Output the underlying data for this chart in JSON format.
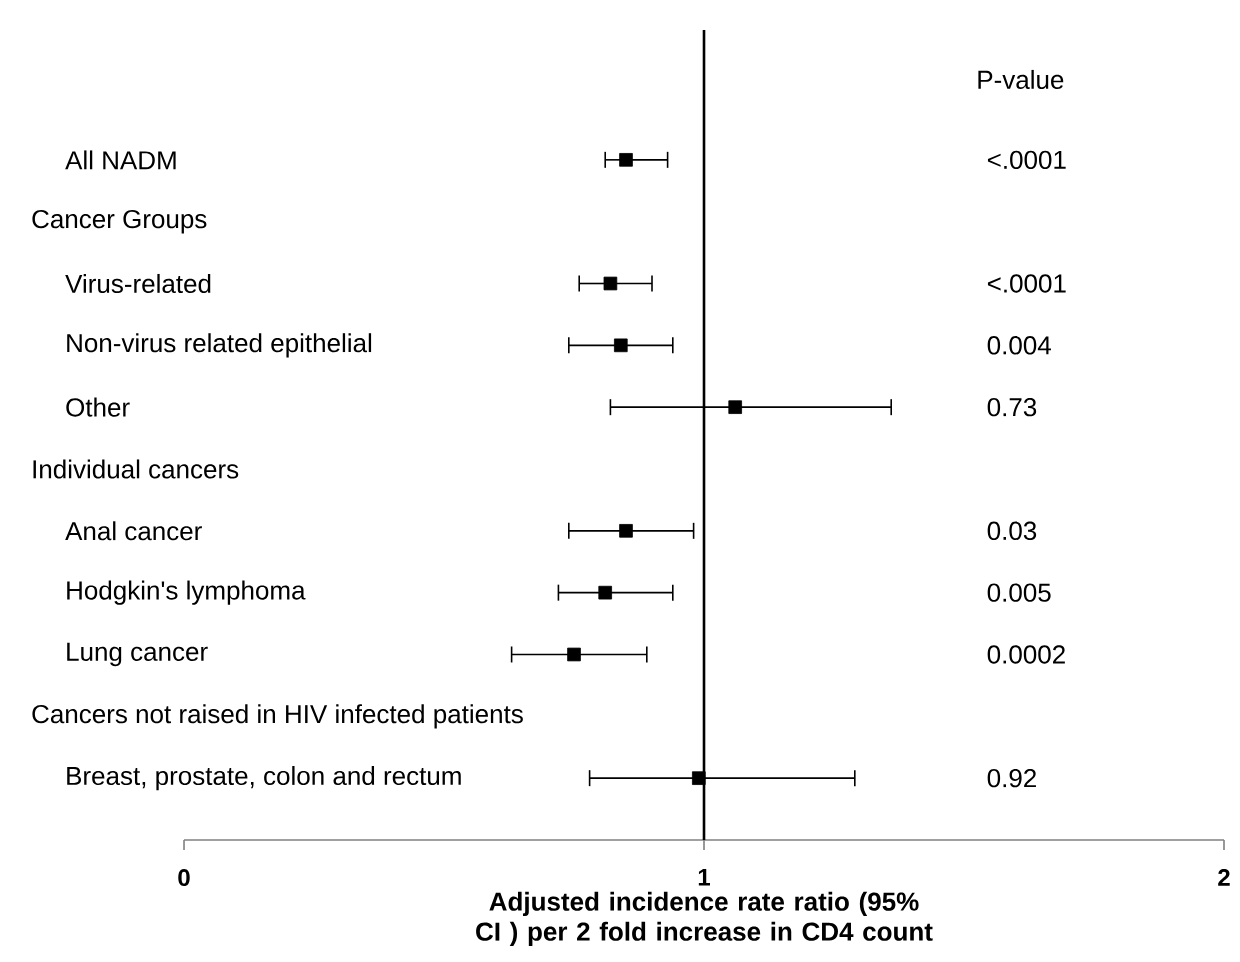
{
  "chart_data": {
    "type": "scatter",
    "orientation": "horizontal",
    "xlabel": "Adjusted incidence rate ratio (95% CI ) per 2 fold increase in CD4 count",
    "categories": [
      "All NADM",
      "Cancer Groups",
      "Virus-related",
      "Non-virus related epithelial",
      "Other",
      "Individual cancers",
      "Anal cancer",
      "Hodgkin's lymphoma",
      "Lung cancer",
      "Cancers not raised in HIV infected patients",
      "Breast, prostate, colon and rectum"
    ],
    "values": [
      0.85,
      null,
      0.82,
      0.84,
      1.06,
      null,
      0.85,
      0.81,
      0.75,
      null,
      0.99
    ],
    "errors": [
      [
        0.81,
        0.93
      ],
      null,
      [
        0.76,
        0.9
      ],
      [
        0.74,
        0.94
      ],
      [
        0.82,
        1.36
      ],
      null,
      [
        0.74,
        0.98
      ],
      [
        0.72,
        0.94
      ],
      [
        0.63,
        0.89
      ],
      null,
      [
        0.78,
        1.29
      ]
    ],
    "color": "#000000",
    "marker": "square",
    "xlim": [
      0,
      2
    ],
    "xticks": [
      0,
      1,
      2
    ],
    "ref_lines": [
      {
        "axis": "x",
        "value": 1
      }
    ],
    "annotations": [
      "P-value",
      "<.0001",
      "<.0001",
      "0.004",
      "0.73",
      "0.03",
      "0.005",
      "0.0002",
      "0.92"
    ]
  }
}
